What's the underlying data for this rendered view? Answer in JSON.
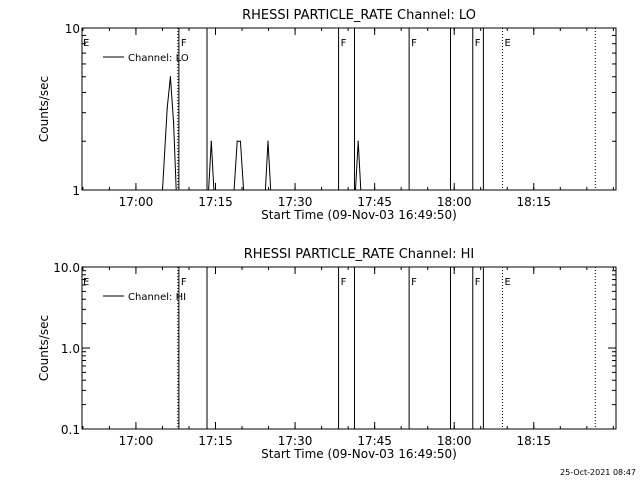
{
  "chart_data": [
    {
      "type": "line",
      "title": "RHESSI PARTICLE_RATE Channel: LO",
      "xlabel": "Start Time (09-Nov-03 16:49:50)",
      "ylabel": "Counts/sec",
      "y_scale": "log",
      "ylim": [
        1,
        10
      ],
      "y_ticks": [
        {
          "value": 1,
          "label": "1"
        },
        {
          "value": 10,
          "label": "10"
        }
      ],
      "x_range_minutes": [
        16.4,
        36.8
      ],
      "x_ticks": [
        {
          "label": "17:00",
          "t": "17:00"
        },
        {
          "label": "17:15",
          "t": "17:15"
        },
        {
          "label": "17:30",
          "t": "17:30"
        },
        {
          "label": "17:45",
          "t": "17:45"
        },
        {
          "label": "18:00",
          "t": "18:00"
        },
        {
          "label": "18:15",
          "t": "18:15"
        }
      ],
      "legend": {
        "entries": [
          "Channel: LO"
        ],
        "placement": "top-left"
      },
      "series": [
        {
          "name": "Channel: LO",
          "points": [
            {
              "t": "17:05.00",
              "y": 1
            },
            {
              "t": "17:05.90",
              "y": 3.2
            },
            {
              "t": "17:06.50",
              "y": 5.0
            },
            {
              "t": "17:07.10",
              "y": 2.6
            },
            {
              "t": "17:07.60",
              "y": 1
            },
            {
              "t": "17:13.70",
              "y": 1
            },
            {
              "t": "17:14.20",
              "y": 2.0
            },
            {
              "t": "17:14.70",
              "y": 1
            },
            {
              "t": "17:18.50",
              "y": 1
            },
            {
              "t": "17:19.10",
              "y": 2.0
            },
            {
              "t": "17:19.70",
              "y": 2.0
            },
            {
              "t": "17:20.30",
              "y": 1
            },
            {
              "t": "17:24.40",
              "y": 1
            },
            {
              "t": "17:24.90",
              "y": 2.0
            },
            {
              "t": "17:25.40",
              "y": 1
            },
            {
              "t": "17:41.40",
              "y": 1
            },
            {
              "t": "17:41.90",
              "y": 2.0
            },
            {
              "t": "17:42.40",
              "y": 1
            }
          ]
        }
      ],
      "flag_lines": [
        {
          "t": "17:07.90",
          "style": "dotted",
          "label": ""
        },
        {
          "t": "17:08.10",
          "style": "solid",
          "label": "F"
        },
        {
          "t": "17:13.40",
          "style": "solid",
          "label": ""
        },
        {
          "t": "17:38.20",
          "style": "solid",
          "label": "F"
        },
        {
          "t": "17:41.20",
          "style": "solid",
          "label": ""
        },
        {
          "t": "17:51.50",
          "style": "solid",
          "label": "F"
        },
        {
          "t": "17:59.30",
          "style": "solid",
          "label": ""
        },
        {
          "t": "18:03.50",
          "style": "solid",
          "label": "F"
        },
        {
          "t": "18:05.50",
          "style": "solid",
          "label": ""
        },
        {
          "t": "18:09.10",
          "style": "dotted",
          "label": "E"
        },
        {
          "t": "18:26.60",
          "style": "dotted",
          "label": ""
        }
      ],
      "left_flag_label": "E",
      "grid": false
    },
    {
      "type": "line",
      "title": "RHESSI PARTICLE_RATE Channel: HI",
      "xlabel": "Start Time (09-Nov-03 16:49:50)",
      "ylabel": "Counts/sec",
      "y_scale": "log",
      "ylim": [
        0.1,
        10
      ],
      "y_ticks": [
        {
          "value": 0.1,
          "label": "0.1"
        },
        {
          "value": 1,
          "label": "1.0"
        },
        {
          "value": 10,
          "label": "10.0"
        }
      ],
      "x_ticks": [
        {
          "label": "17:00",
          "t": "17:00"
        },
        {
          "label": "17:15",
          "t": "17:15"
        },
        {
          "label": "17:30",
          "t": "17:30"
        },
        {
          "label": "17:45",
          "t": "17:45"
        },
        {
          "label": "18:00",
          "t": "18:00"
        },
        {
          "label": "18:15",
          "t": "18:15"
        }
      ],
      "legend": {
        "entries": [
          "Channel: HI"
        ],
        "placement": "top-left"
      },
      "series": [
        {
          "name": "Channel: HI",
          "points": []
        }
      ],
      "flag_lines": [
        {
          "t": "17:07.90",
          "style": "dotted",
          "label": ""
        },
        {
          "t": "17:08.10",
          "style": "solid",
          "label": "F"
        },
        {
          "t": "17:13.40",
          "style": "solid",
          "label": ""
        },
        {
          "t": "17:38.20",
          "style": "solid",
          "label": "F"
        },
        {
          "t": "17:41.20",
          "style": "solid",
          "label": ""
        },
        {
          "t": "17:51.50",
          "style": "solid",
          "label": "F"
        },
        {
          "t": "17:59.30",
          "style": "solid",
          "label": ""
        },
        {
          "t": "18:03.50",
          "style": "solid",
          "label": "F"
        },
        {
          "t": "18:05.50",
          "style": "solid",
          "label": ""
        },
        {
          "t": "18:09.10",
          "style": "dotted",
          "label": "E"
        },
        {
          "t": "18:26.60",
          "style": "dotted",
          "label": ""
        }
      ],
      "left_flag_label": "E",
      "grid": false
    }
  ],
  "footer": {
    "timestamp": "25-Oct-2021 08:47"
  }
}
